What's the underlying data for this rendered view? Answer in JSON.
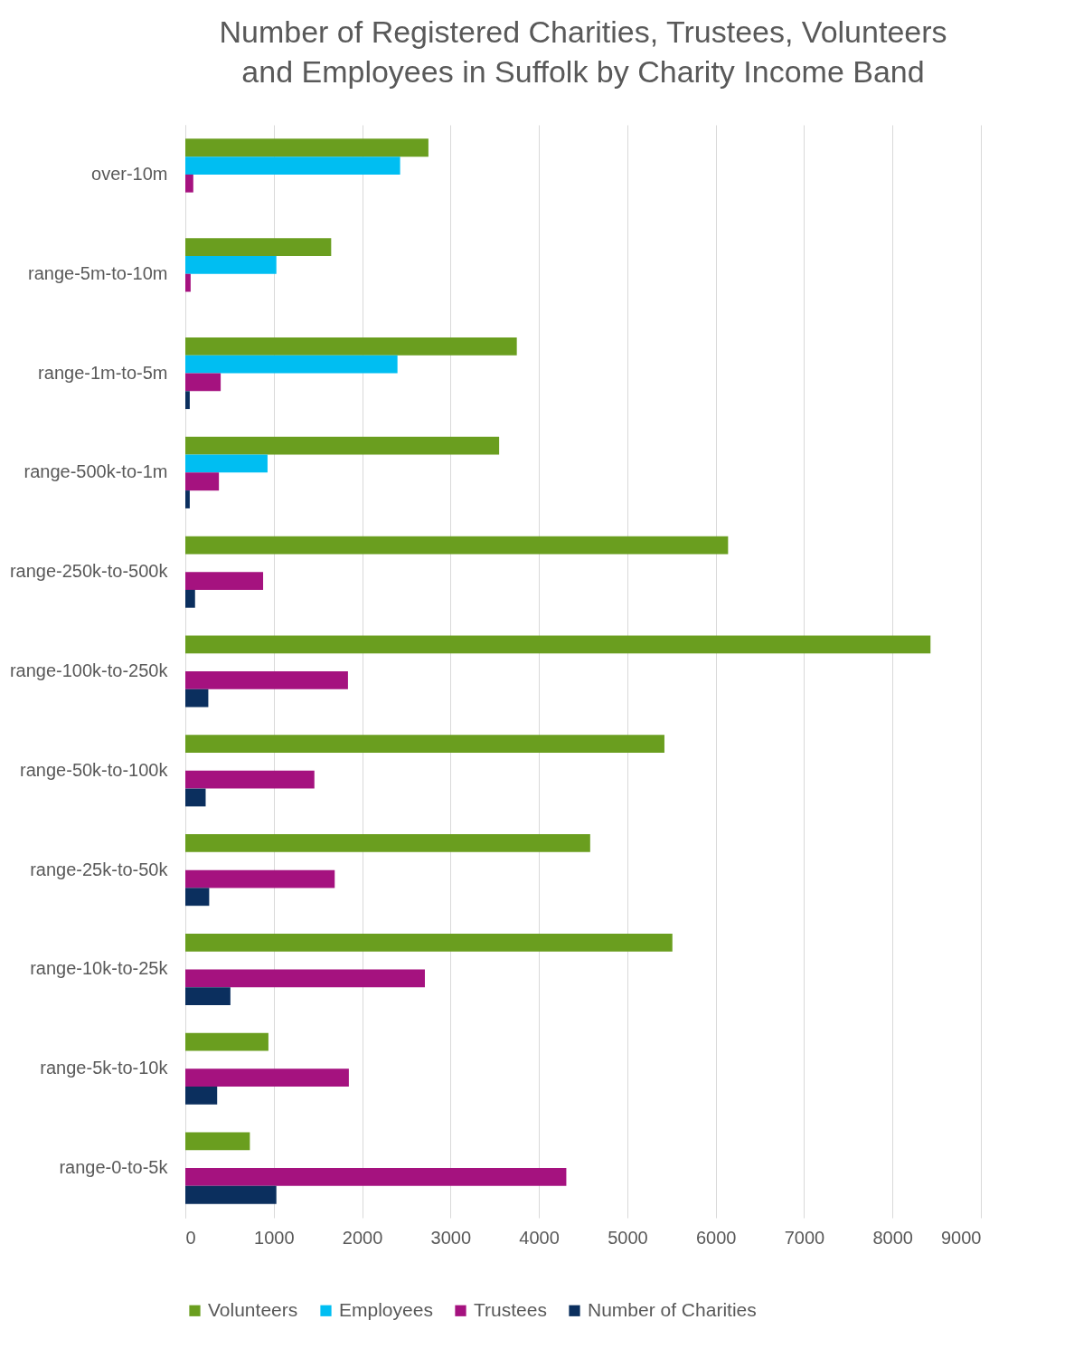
{
  "chart_data": {
    "type": "bar",
    "orientation": "horizontal",
    "title": "Number of Registered Charities, Trustees, Volunteers and Employees in Suffolk by Charity Income Band",
    "categories": [
      "over-10m",
      "range-5m-to-10m",
      "range-1m-to-5m",
      "range-500k-to-1m",
      "range-250k-to-500k",
      "range-100k-to-250k",
      "range-50k-to-100k",
      "range-25k-to-50k",
      "range-10k-to-25k",
      "range-5k-to-10k",
      "range-0-to-5k"
    ],
    "series": [
      {
        "name": "Volunteers",
        "color": "#6a9e1f",
        "values": [
          2750,
          1650,
          3750,
          3550,
          6140,
          8430,
          5420,
          4580,
          5510,
          940,
          730
        ]
      },
      {
        "name": "Employees",
        "color": "#00bef2",
        "values": [
          2430,
          1030,
          2400,
          930,
          null,
          null,
          null,
          null,
          null,
          null,
          null
        ]
      },
      {
        "name": "Trustees",
        "color": "#a5127f",
        "values": [
          90,
          60,
          400,
          380,
          880,
          1840,
          1460,
          1690,
          2710,
          1850,
          4310
        ]
      },
      {
        "name": "Number of Charities",
        "color": "#0b2f5e",
        "values": [
          0,
          0,
          50,
          50,
          110,
          260,
          230,
          270,
          510,
          360,
          1030
        ]
      }
    ],
    "xlim": [
      0,
      9000
    ],
    "xticks": [
      0,
      1000,
      2000,
      3000,
      4000,
      5000,
      6000,
      7000,
      8000,
      9000
    ],
    "grid": "x",
    "legend": "bottom"
  }
}
